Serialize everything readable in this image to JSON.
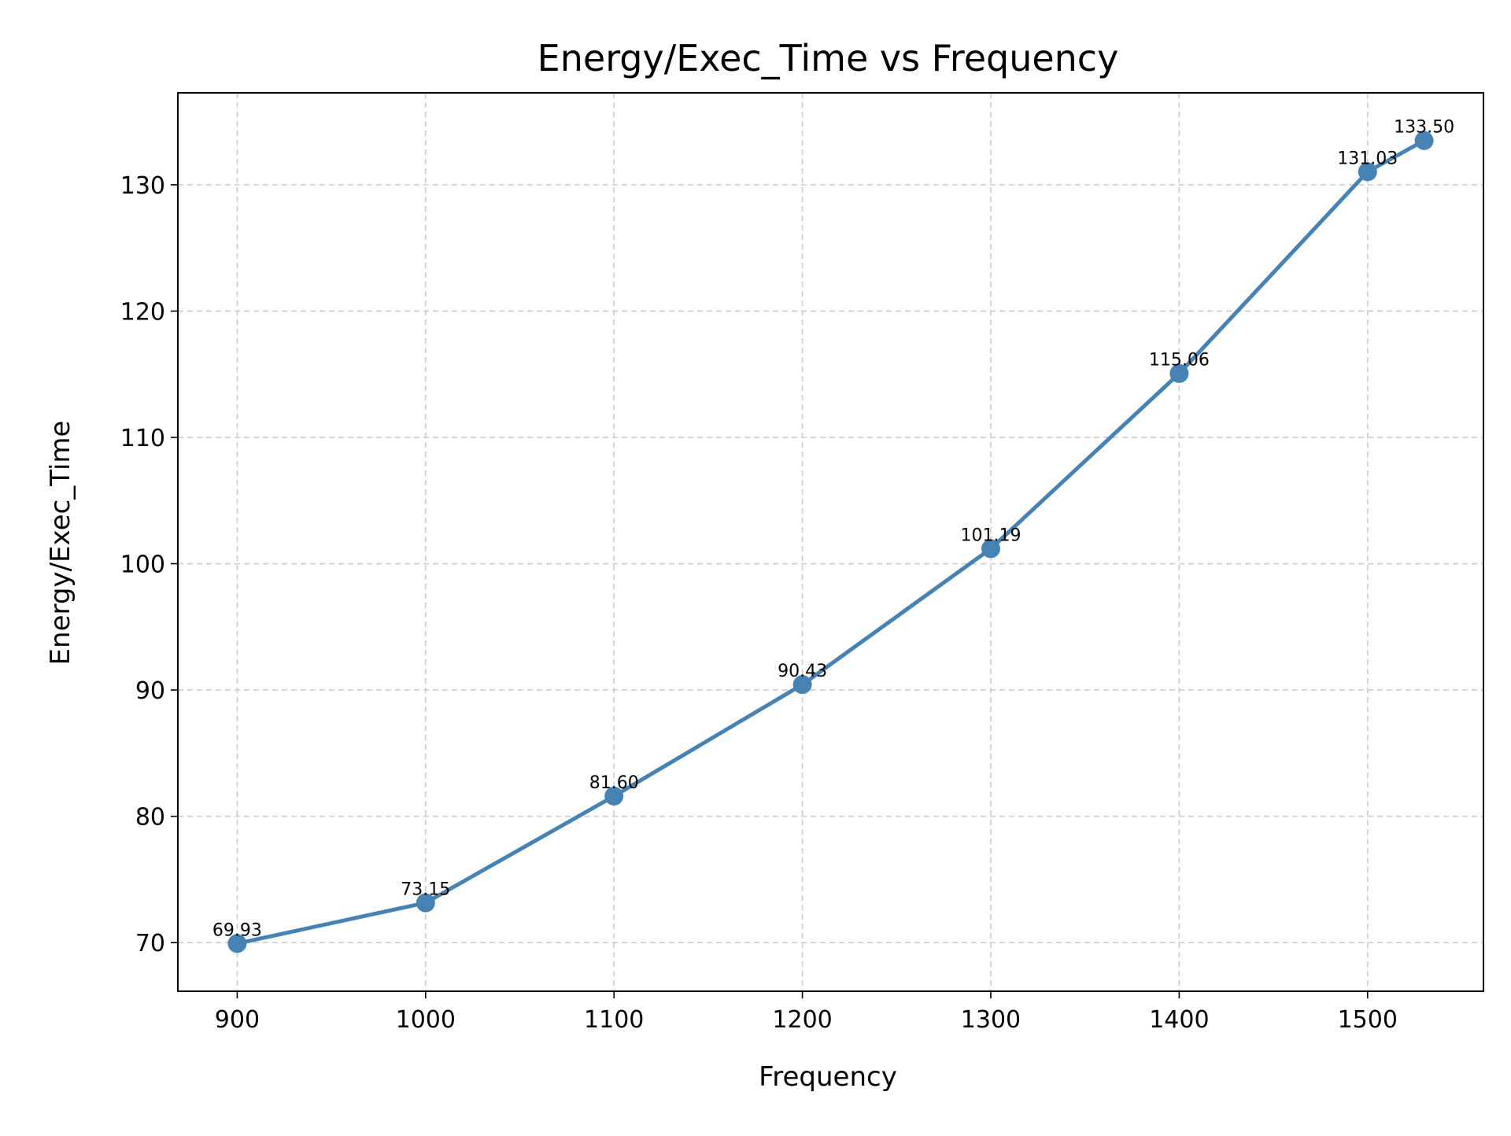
{
  "chart_data": {
    "type": "line",
    "title": "Energy/Exec_Time vs Frequency",
    "xlabel": "Frequency",
    "ylabel": "Energy/Exec_Time",
    "x": [
      900,
      1000,
      1100,
      1200,
      1300,
      1400,
      1500,
      1530
    ],
    "series": [
      {
        "values": [
          69.93,
          73.15,
          81.6,
          90.43,
          101.19,
          115.06,
          131.03,
          133.5
        ],
        "labels": [
          "69.93",
          "73.15",
          "81.60",
          "90.43",
          "101.19",
          "115.06",
          "131.03",
          "133.50"
        ],
        "color": "#4682b4"
      }
    ],
    "xticks": [
      900,
      1000,
      1100,
      1200,
      1300,
      1400,
      1500
    ],
    "xtick_labels": [
      "900",
      "1000",
      "1100",
      "1200",
      "1300",
      "1400",
      "1500"
    ],
    "yticks": [
      70,
      80,
      90,
      100,
      110,
      120,
      130
    ],
    "ytick_labels": [
      "70",
      "80",
      "90",
      "100",
      "110",
      "120",
      "130"
    ],
    "xlim": [
      868.5,
      1561.5
    ],
    "ylim": [
      66.15,
      137.28
    ],
    "grid": true,
    "legend": "none"
  }
}
